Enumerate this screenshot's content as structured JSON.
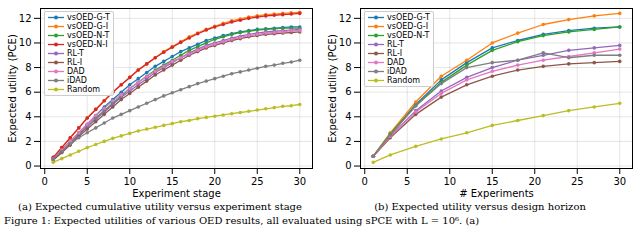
{
  "caption": "Figure 1: Expected utilities of various OED results, all evaluated using sPCE with L = 10⁶. (a)",
  "chart_data": [
    {
      "type": "line",
      "title": "(a) Expected cumulative utility versus experiment stage",
      "x_label": "Experiment stage",
      "y_label": "Expected utility (PCE)",
      "x": [
        1,
        2,
        3,
        4,
        5,
        6,
        7,
        8,
        9,
        10,
        11,
        12,
        13,
        14,
        15,
        16,
        17,
        18,
        19,
        20,
        21,
        22,
        23,
        24,
        25,
        26,
        27,
        28,
        29,
        30
      ],
      "xlim": [
        -0.5,
        31.5
      ],
      "xticks": [
        0,
        5,
        10,
        15,
        20,
        25,
        30
      ],
      "ylim": [
        -0.2,
        12.8
      ],
      "yticks": [
        0,
        2,
        4,
        6,
        8,
        10,
        12
      ],
      "grid": true,
      "legend": "top-left",
      "marker": "circle",
      "series": [
        {
          "name": "vsOED-G-T",
          "color": "#1f77b4",
          "values": [
            0.6,
            1.3,
            2.0,
            2.7,
            3.4,
            4.1,
            4.8,
            5.4,
            6.0,
            6.6,
            7.1,
            7.6,
            8.1,
            8.5,
            8.9,
            9.3,
            9.6,
            9.9,
            10.2,
            10.4,
            10.6,
            10.75,
            10.9,
            11.0,
            11.1,
            11.15,
            11.2,
            11.25,
            11.3,
            11.3
          ]
        },
        {
          "name": "vsOED-G-I",
          "color": "#ff7f0e",
          "values": [
            0.7,
            1.5,
            2.3,
            3.1,
            3.9,
            4.6,
            5.3,
            6.0,
            6.6,
            7.2,
            7.8,
            8.3,
            8.8,
            9.3,
            9.7,
            10.1,
            10.5,
            10.8,
            11.1,
            11.35,
            11.6,
            11.8,
            11.95,
            12.1,
            12.2,
            12.3,
            12.35,
            12.4,
            12.45,
            12.5
          ]
        },
        {
          "name": "vsOED-N-T",
          "color": "#2ca02c",
          "values": [
            0.6,
            1.2,
            1.9,
            2.6,
            3.2,
            3.9,
            4.5,
            5.1,
            5.7,
            6.3,
            6.8,
            7.3,
            7.8,
            8.2,
            8.6,
            9.0,
            9.4,
            9.7,
            10.0,
            10.3,
            10.5,
            10.7,
            10.85,
            10.95,
            11.05,
            11.1,
            11.15,
            11.2,
            11.2,
            11.2
          ]
        },
        {
          "name": "vsOED-N-I",
          "color": "#d62728",
          "values": [
            0.7,
            1.5,
            2.3,
            3.1,
            3.9,
            4.6,
            5.3,
            6.0,
            6.6,
            7.2,
            7.8,
            8.3,
            8.8,
            9.25,
            9.65,
            10.05,
            10.4,
            10.75,
            11.05,
            11.3,
            11.5,
            11.7,
            11.85,
            12.0,
            12.1,
            12.2,
            12.25,
            12.3,
            12.35,
            12.4
          ]
        },
        {
          "name": "RL-T",
          "color": "#9467bd",
          "values": [
            0.5,
            1.1,
            1.8,
            2.5,
            3.2,
            3.8,
            4.4,
            5.0,
            5.6,
            6.1,
            6.6,
            7.1,
            7.6,
            8.0,
            8.4,
            8.8,
            9.2,
            9.5,
            9.8,
            10.0,
            10.2,
            10.4,
            10.55,
            10.7,
            10.8,
            10.9,
            10.95,
            11.0,
            11.05,
            11.1
          ]
        },
        {
          "name": "RL-I",
          "color": "#8c564b",
          "values": [
            0.5,
            1.1,
            1.7,
            2.4,
            3.0,
            3.6,
            4.2,
            4.8,
            5.4,
            5.9,
            6.4,
            6.9,
            7.4,
            7.8,
            8.2,
            8.6,
            9.0,
            9.3,
            9.6,
            9.8,
            10.0,
            10.2,
            10.35,
            10.5,
            10.6,
            10.7,
            10.75,
            10.8,
            10.85,
            10.9
          ]
        },
        {
          "name": "DAD",
          "color": "#e377c2",
          "values": [
            0.6,
            1.3,
            2.0,
            2.7,
            3.4,
            4.1,
            4.7,
            5.3,
            5.8,
            6.3,
            6.8,
            7.3,
            7.7,
            8.1,
            8.5,
            8.8,
            9.1,
            9.4,
            9.7,
            9.9,
            10.1,
            10.3,
            10.45,
            10.6,
            10.7,
            10.8,
            10.85,
            10.9,
            11.0,
            11.0
          ]
        },
        {
          "name": "iDAD",
          "color": "#7f7f7f",
          "values": [
            0.6,
            1.2,
            1.8,
            2.3,
            2.7,
            3.1,
            3.5,
            3.9,
            4.2,
            4.5,
            4.8,
            5.1,
            5.4,
            5.7,
            5.95,
            6.2,
            6.45,
            6.7,
            6.9,
            7.1,
            7.3,
            7.5,
            7.65,
            7.8,
            7.95,
            8.1,
            8.2,
            8.35,
            8.45,
            8.6
          ]
        },
        {
          "name": "Random",
          "color": "#bcbd22",
          "values": [
            0.3,
            0.6,
            0.9,
            1.2,
            1.5,
            1.75,
            2.0,
            2.25,
            2.45,
            2.65,
            2.85,
            3.0,
            3.15,
            3.3,
            3.45,
            3.6,
            3.7,
            3.85,
            3.95,
            4.05,
            4.15,
            4.25,
            4.35,
            4.45,
            4.55,
            4.65,
            4.75,
            4.85,
            4.9,
            5.0
          ]
        }
      ]
    },
    {
      "type": "line",
      "title": "(b) Expected utility versus design horizon",
      "x_label": "# Experiments",
      "y_label": "Expected utility (PCE)",
      "x": [
        1,
        3,
        6,
        9,
        12,
        15,
        18,
        21,
        24,
        27,
        30
      ],
      "xlim": [
        -0.5,
        31.5
      ],
      "xticks": [
        0,
        5,
        10,
        15,
        20,
        25,
        30
      ],
      "ylim": [
        -0.2,
        12.8
      ],
      "yticks": [
        0,
        2,
        4,
        6,
        8,
        10,
        12
      ],
      "grid": true,
      "legend": "top-left",
      "marker": "circle",
      "series": [
        {
          "name": "vsOED-G-T",
          "color": "#1f77b4",
          "values": [
            0.8,
            2.6,
            5.0,
            7.0,
            8.4,
            9.6,
            10.2,
            10.7,
            11.0,
            11.2,
            11.3
          ]
        },
        {
          "name": "vsOED-G-I",
          "color": "#ff7f0e",
          "values": [
            0.8,
            2.7,
            5.2,
            7.3,
            8.6,
            10.0,
            10.8,
            11.5,
            11.9,
            12.2,
            12.4
          ]
        },
        {
          "name": "vsOED-N-T",
          "color": "#2ca02c",
          "values": [
            0.8,
            2.6,
            4.9,
            6.8,
            8.2,
            9.4,
            10.1,
            10.6,
            10.9,
            11.1,
            11.3
          ]
        },
        {
          "name": "RL-T",
          "color": "#9467bd",
          "values": [
            0.8,
            2.4,
            4.5,
            6.1,
            7.2,
            8.0,
            8.6,
            9.0,
            9.4,
            9.6,
            9.8
          ]
        },
        {
          "name": "RL-I",
          "color": "#8c564b",
          "values": [
            0.8,
            2.3,
            4.2,
            5.6,
            6.6,
            7.3,
            7.8,
            8.1,
            8.3,
            8.4,
            8.5
          ]
        },
        {
          "name": "DAD",
          "color": "#e377c2",
          "values": [
            0.8,
            2.4,
            4.4,
            5.9,
            7.0,
            7.7,
            8.2,
            8.6,
            8.9,
            9.2,
            9.5
          ]
        },
        {
          "name": "iDAD",
          "color": "#7f7f7f",
          "values": [
            0.8,
            2.5,
            4.9,
            6.7,
            8.0,
            8.4,
            8.6,
            9.2,
            8.8,
            9.0,
            9.0
          ]
        },
        {
          "name": "Random",
          "color": "#bcbd22",
          "values": [
            0.3,
            0.9,
            1.6,
            2.2,
            2.7,
            3.3,
            3.7,
            4.1,
            4.5,
            4.8,
            5.1
          ]
        }
      ]
    }
  ]
}
